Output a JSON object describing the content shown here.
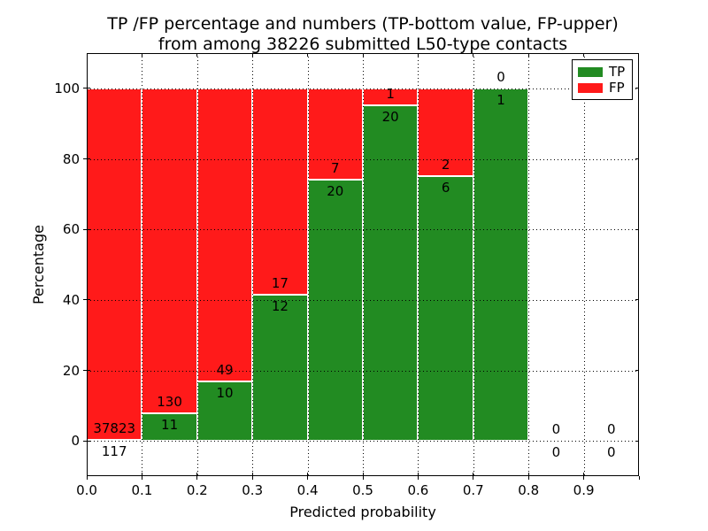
{
  "chart_data": {
    "type": "bar",
    "stacked": true,
    "normalized_to_percent": true,
    "title_lines": [
      "TP /FP percentage and numbers (TP-bottom value, FP-upper)",
      "from among 38226 submitted L50-type contacts"
    ],
    "xlabel": "Predicted probability",
    "ylabel": "Percentage",
    "xlim": [
      0.0,
      1.0
    ],
    "ylim": [
      -10,
      110
    ],
    "xtick_labels": [
      "0.0",
      "0.1",
      "0.2",
      "0.3",
      "0.4",
      "0.5",
      "0.6",
      "0.7",
      "0.8",
      "0.9"
    ],
    "ytick_values": [
      0,
      20,
      40,
      60,
      80,
      100
    ],
    "grid": "dotted",
    "background_color": "#ffffff",
    "legend": {
      "position": "upper-right",
      "entries": [
        {
          "label": "TP",
          "color": "#228b22"
        },
        {
          "label": "FP",
          "color": "#ff1a1a"
        }
      ]
    },
    "bin_width": 0.1,
    "categories": [
      "0.0-0.1",
      "0.1-0.2",
      "0.2-0.3",
      "0.3-0.4",
      "0.4-0.5",
      "0.5-0.6",
      "0.6-0.7",
      "0.7-0.8",
      "0.8-0.9",
      "0.9-1.0"
    ],
    "series": [
      {
        "name": "TP",
        "color": "#228b22",
        "values": [
          117,
          11,
          10,
          12,
          20,
          20,
          6,
          1,
          0,
          0
        ]
      },
      {
        "name": "FP",
        "color": "#ff1a1a",
        "values": [
          37823,
          130,
          49,
          17,
          7,
          1,
          2,
          0,
          0,
          0
        ]
      }
    ],
    "tp_percent_per_bin": [
      0.31,
      7.8,
      16.95,
      41.38,
      74.07,
      95.24,
      75.0,
      100.0,
      null,
      null
    ],
    "total_contacts": 38226
  }
}
